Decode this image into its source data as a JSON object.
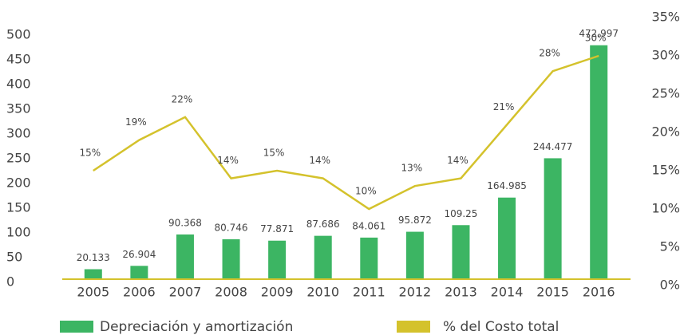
{
  "chart_data": {
    "type": "bar_line",
    "categories": [
      "2005",
      "2006",
      "2007",
      "2008",
      "2009",
      "2010",
      "2011",
      "2012",
      "2013",
      "2014",
      "2015",
      "2016"
    ],
    "series": [
      {
        "name": "Depreciación y amortización",
        "color": "#3cb563",
        "type": "bar",
        "values": [
          20.133,
          26.904,
          90.368,
          80.746,
          77.871,
          87.686,
          84.061,
          95.872,
          109.25,
          164.985,
          244.477,
          472.997
        ]
      },
      {
        "name": "% del Costo total",
        "color": "#d4c22c",
        "type": "line",
        "axis": "y2",
        "values": [
          15,
          19,
          22,
          14,
          15,
          14,
          10,
          13,
          14,
          21,
          28,
          30
        ],
        "value_labels": [
          "15%",
          "19%",
          "22%",
          "14%",
          "15%",
          "14%",
          "10%",
          "13%",
          "14%",
          "21%",
          "28%",
          "30%"
        ]
      }
    ],
    "ylim": [
      0,
      500
    ],
    "yticks": [
      0,
      50,
      100,
      150,
      200,
      250,
      300,
      350,
      400,
      450,
      500
    ],
    "y2lim": [
      0,
      35
    ],
    "y2ticks": [
      {
        "value": 0,
        "label": "0%"
      },
      {
        "value": 5,
        "label": "5%"
      },
      {
        "value": 10,
        "label": "10%"
      },
      {
        "value": 15,
        "label": "15%"
      },
      {
        "value": 20,
        "label": "20%"
      },
      {
        "value": 25,
        "label": "25%"
      },
      {
        "value": 30,
        "label": "30%"
      },
      {
        "value": 35,
        "label": "35%"
      }
    ],
    "legend": "bottom"
  }
}
